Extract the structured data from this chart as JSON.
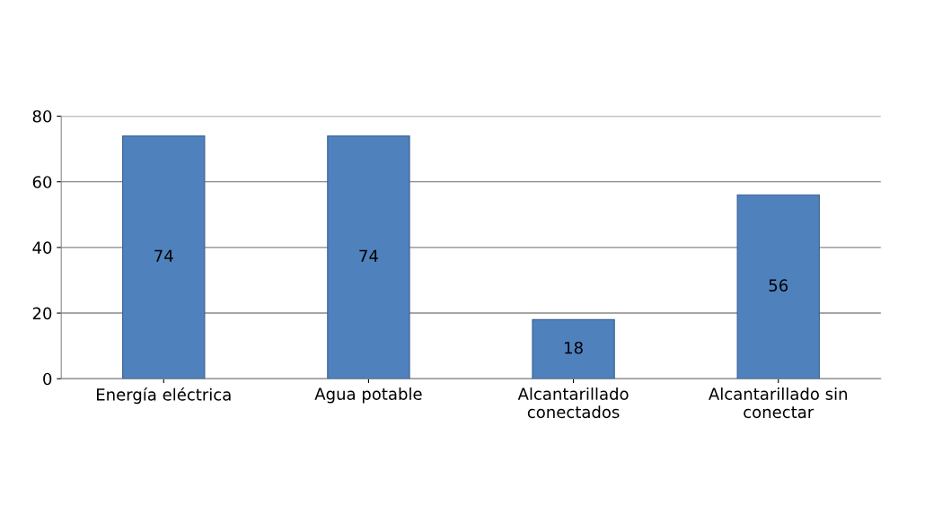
{
  "chart_data": {
    "type": "bar",
    "categories": [
      "Energía eléctrica",
      "Agua potable",
      "Alcantarillado\nconectados",
      "Alcantarillado sin\nconectar"
    ],
    "values": [
      74,
      74,
      18,
      56
    ],
    "color": "#4f81bd",
    "ylim": [
      0,
      80
    ],
    "yticks": [
      0,
      20,
      40,
      60,
      80
    ],
    "grid": "y",
    "data_labels": true
  }
}
